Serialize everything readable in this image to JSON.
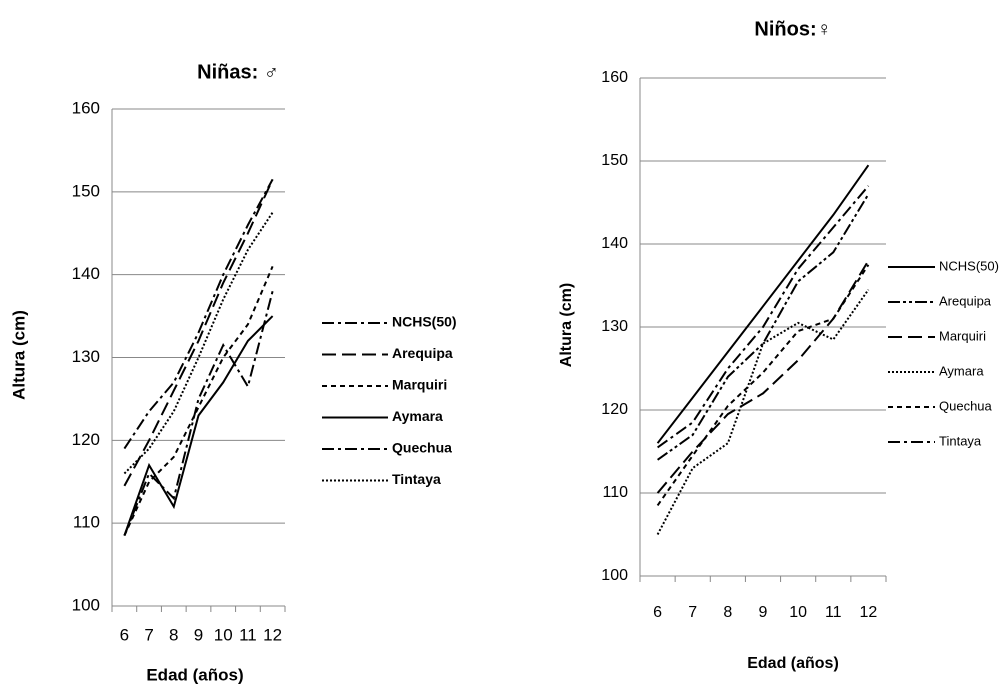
{
  "chart_data": [
    {
      "type": "line",
      "title": "Niñas: ♂",
      "xlabel": "Edad (años)",
      "ylabel": "Altura (cm)",
      "categories": [
        "6",
        "7",
        "8",
        "9",
        "10",
        "11",
        "12"
      ],
      "ylim": [
        100,
        160
      ],
      "yticks": [
        100,
        110,
        120,
        130,
        140,
        150,
        160
      ],
      "grid": true,
      "series": [
        {
          "name": "NCHS(50)",
          "color": "#000000",
          "dash": "dash-dot",
          "values": [
            119,
            123.5,
            127,
            133,
            140,
            146,
            151.5
          ]
        },
        {
          "name": "Arequipa",
          "color": "#000000",
          "dash": "dash",
          "values": [
            114.5,
            120,
            126,
            132,
            139,
            145,
            151.5
          ]
        },
        {
          "name": "Marquiri",
          "color": "#000000",
          "dash": "short-dash",
          "values": [
            108.5,
            115,
            118,
            124,
            130,
            134,
            141
          ]
        },
        {
          "name": "Aymara",
          "color": "#000000",
          "dash": "solid",
          "values": [
            108.5,
            117,
            112,
            123,
            127,
            132,
            135
          ]
        },
        {
          "name": "Quechua",
          "color": "#000000",
          "dash": "dash-dot",
          "values": [
            108.5,
            116,
            113,
            125,
            131.5,
            126.5,
            138
          ]
        },
        {
          "name": "Tintaya",
          "color": "#000000",
          "dash": "dot",
          "values": [
            116,
            119,
            123.5,
            130,
            137,
            143,
            147.5
          ]
        }
      ]
    },
    {
      "type": "line",
      "title": "Niños:♀",
      "xlabel": "Edad (años)",
      "ylabel": "Altura (cm)",
      "categories": [
        "6",
        "7",
        "8",
        "9",
        "10",
        "11",
        "12"
      ],
      "ylim": [
        100,
        160
      ],
      "yticks": [
        100,
        110,
        120,
        130,
        140,
        150,
        160
      ],
      "grid": true,
      "series": [
        {
          "name": "NCHS(50)",
          "color": "#000000",
          "dash": "solid",
          "values": [
            116,
            121.5,
            127,
            132.5,
            138,
            143.5,
            149.5
          ]
        },
        {
          "name": "Arequipa",
          "color": "#000000",
          "dash": "dash-dot-dot",
          "values": [
            114,
            117,
            124,
            128,
            135.5,
            139,
            146
          ]
        },
        {
          "name": "Marquiri",
          "color": "#000000",
          "dash": "dash",
          "values": [
            110,
            115,
            119.5,
            122,
            126,
            131,
            138
          ]
        },
        {
          "name": "Aymara",
          "color": "#000000",
          "dash": "dot",
          "values": [
            105,
            113,
            116,
            128,
            130.5,
            128.5,
            134.5
          ]
        },
        {
          "name": "Quechua",
          "color": "#000000",
          "dash": "short-dash",
          "values": [
            108.5,
            114.5,
            120.5,
            124.5,
            129.5,
            131,
            137.5
          ]
        },
        {
          "name": "Tintaya",
          "color": "#000000",
          "dash": "dash-dot",
          "values": [
            115.5,
            118.5,
            125,
            130,
            137,
            142,
            147
          ]
        }
      ]
    }
  ]
}
